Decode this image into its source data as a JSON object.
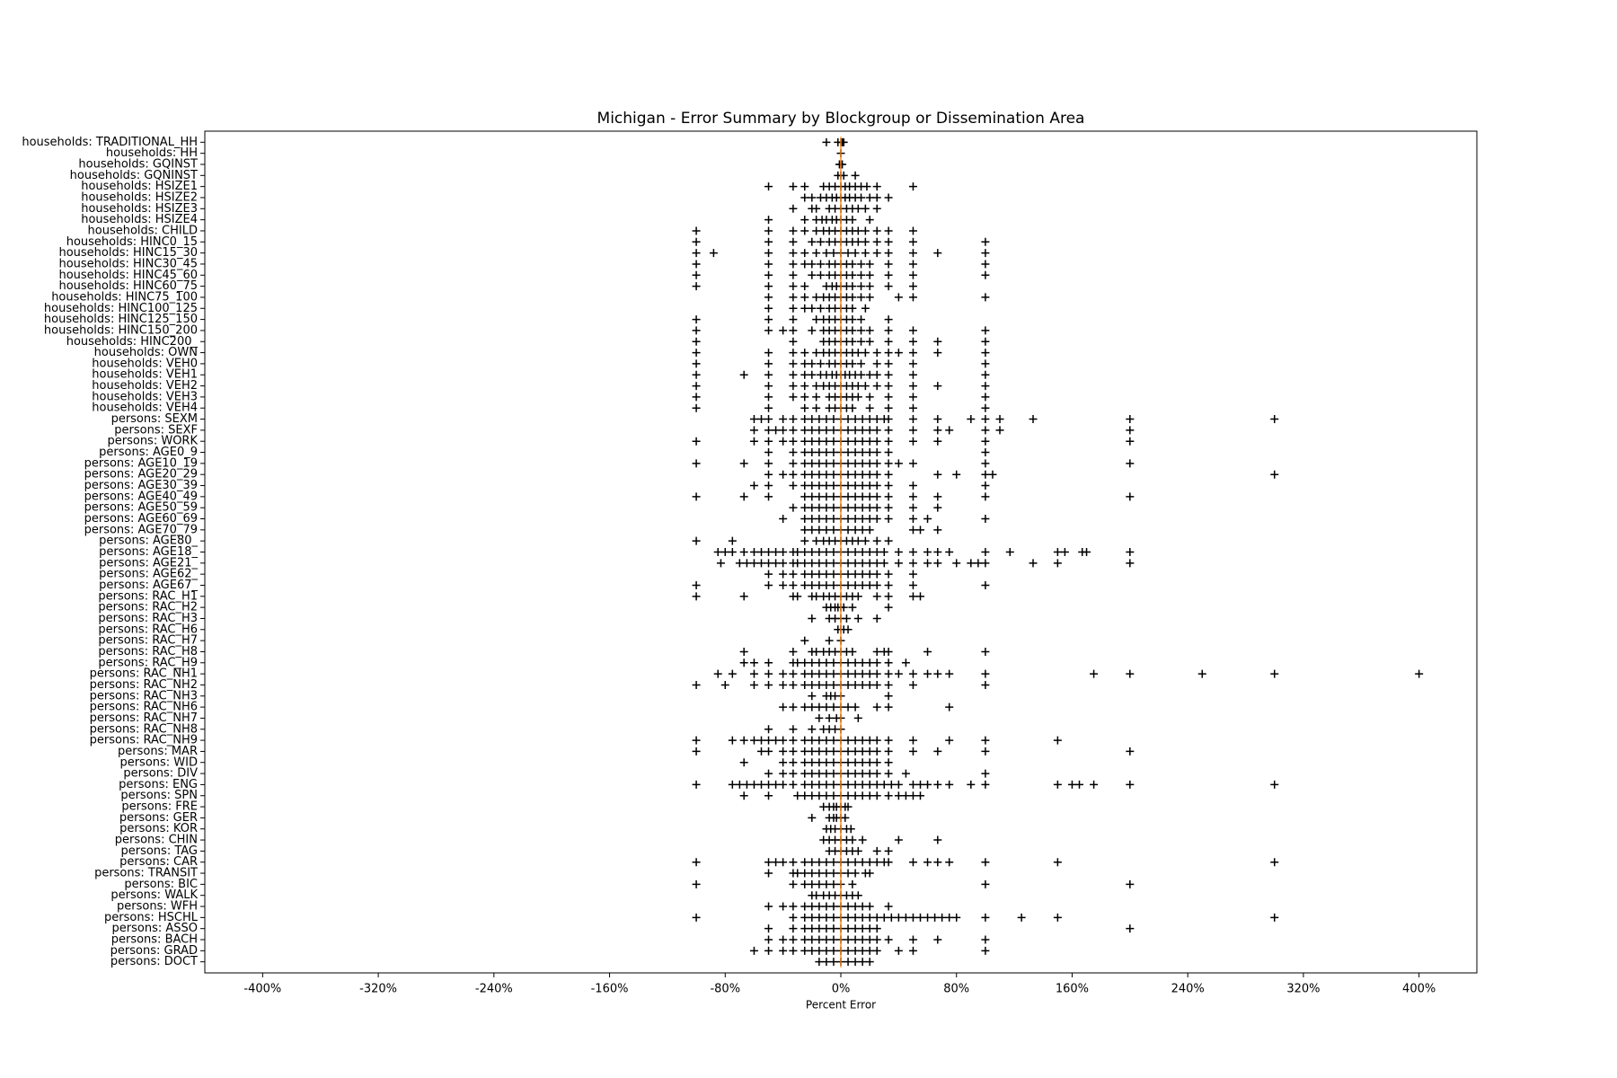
{
  "chart_data": {
    "type": "scatter",
    "title": "Michigan - Error Summary by Blockgroup or Dissemination Area",
    "x_label": "Percent Error",
    "color": "#000000",
    "marker": "+",
    "reference_line": {
      "value": 0,
      "color": "#ff7f0e"
    },
    "xlim": [
      -440,
      440
    ],
    "xticks": [
      {
        "value": -400,
        "label": "-400%"
      },
      {
        "value": -320,
        "label": "-320%"
      },
      {
        "value": -240,
        "label": "-240%"
      },
      {
        "value": -160,
        "label": "-160%"
      },
      {
        "value": -80,
        "label": "-80%"
      },
      {
        "value": 0,
        "label": "0%"
      },
      {
        "value": 80,
        "label": "80%"
      },
      {
        "value": 160,
        "label": "160%"
      },
      {
        "value": 240,
        "label": "240%"
      },
      {
        "value": 320,
        "label": "320%"
      },
      {
        "value": 400,
        "label": "400%"
      }
    ],
    "categories": [
      "households: TRADITIONAL_HH",
      "households: HH",
      "households: GQINST",
      "households: GQNINST",
      "households: HSIZE1",
      "households: HSIZE2",
      "households: HSIZE3",
      "households: HSIZE4",
      "households: CHILD",
      "households: HINC0_15",
      "households: HINC15_30",
      "households: HINC30_45",
      "households: HINC45_60",
      "households: HINC60_75",
      "households: HINC75_100",
      "households: HINC100_125",
      "households: HINC125_150",
      "households: HINC150_200",
      "households: HINC200_",
      "households: OWN",
      "households: VEH0",
      "households: VEH1",
      "households: VEH2",
      "households: VEH3",
      "households: VEH4",
      "persons: SEXM",
      "persons: SEXF",
      "persons: WORK",
      "persons: AGE0_9",
      "persons: AGE10_19",
      "persons: AGE20_29",
      "persons: AGE30_39",
      "persons: AGE40_49",
      "persons: AGE50_59",
      "persons: AGE60_69",
      "persons: AGE70_79",
      "persons: AGE80_",
      "persons: AGE18_",
      "persons: AGE21_",
      "persons: AGE62_",
      "persons: AGE67_",
      "persons: RAC_H1",
      "persons: RAC_H2",
      "persons: RAC_H3",
      "persons: RAC_H6",
      "persons: RAC_H7",
      "persons: RAC_H8",
      "persons: RAC_H9",
      "persons: RAC_NH1",
      "persons: RAC_NH2",
      "persons: RAC_NH3",
      "persons: RAC_NH6",
      "persons: RAC_NH7",
      "persons: RAC_NH8",
      "persons: RAC_NH9",
      "persons: MAR",
      "persons: WID",
      "persons: DIV",
      "persons: ENG",
      "persons: SPN",
      "persons: FRE",
      "persons: GER",
      "persons: KOR",
      "persons: CHIN",
      "persons: TAG",
      "persons: CAR",
      "persons: TRANSIT",
      "persons: BIC",
      "persons: WALK",
      "persons: WFH",
      "persons: HSCHL",
      "persons: ASSO",
      "persons: BACH",
      "persons: GRAD",
      "persons: DOCT"
    ],
    "values": [
      [
        -10,
        -2,
        0,
        1,
        2
      ],
      [
        0
      ],
      [
        -1,
        0,
        1
      ],
      [
        -2,
        0,
        2,
        10
      ],
      [
        -50,
        -33,
        -25,
        -12,
        -8,
        -4,
        0,
        3,
        6,
        10,
        14,
        18,
        25,
        50
      ],
      [
        -25,
        -20,
        -14,
        -10,
        -6,
        -3,
        0,
        3,
        6,
        10,
        14,
        20,
        25,
        33
      ],
      [
        -33,
        -20,
        -17,
        -8,
        -4,
        0,
        4,
        8,
        12,
        17,
        25
      ],
      [
        -50,
        -25,
        -17,
        -13,
        -10,
        -6,
        -3,
        0,
        4,
        8,
        20
      ],
      [
        -100,
        -50,
        -33,
        -25,
        -17,
        -12,
        -8,
        -4,
        0,
        4,
        8,
        12,
        17,
        25,
        33,
        50
      ],
      [
        -100,
        -50,
        -33,
        -20,
        -14,
        -8,
        -4,
        0,
        4,
        8,
        12,
        17,
        25,
        33,
        50,
        100
      ],
      [
        -100,
        -88,
        -50,
        -33,
        -25,
        -17,
        -10,
        -5,
        0,
        5,
        10,
        17,
        25,
        33,
        50,
        67,
        100
      ],
      [
        -100,
        -50,
        -33,
        -25,
        -20,
        -14,
        -8,
        -4,
        0,
        4,
        8,
        14,
        20,
        33,
        50,
        100
      ],
      [
        -100,
        -50,
        -33,
        -20,
        -14,
        -8,
        -4,
        0,
        4,
        8,
        14,
        20,
        33,
        50,
        100
      ],
      [
        -100,
        -50,
        -33,
        -25,
        -10,
        -6,
        -3,
        0,
        4,
        8,
        14,
        20,
        33,
        50
      ],
      [
        -50,
        -33,
        -25,
        -17,
        -12,
        -8,
        -4,
        0,
        4,
        8,
        14,
        20,
        40,
        50,
        100
      ],
      [
        -50,
        -33,
        -25,
        -20,
        -14,
        -8,
        -4,
        0,
        4,
        8,
        17
      ],
      [
        -100,
        -50,
        -33,
        -17,
        -12,
        -8,
        -4,
        0,
        4,
        8,
        14,
        33
      ],
      [
        -100,
        -50,
        -40,
        -33,
        -20,
        -12,
        -8,
        -4,
        0,
        4,
        8,
        14,
        20,
        33,
        50,
        100
      ],
      [
        -100,
        -33,
        -12,
        -8,
        -4,
        0,
        4,
        8,
        14,
        20,
        33,
        50,
        67,
        100
      ],
      [
        -100,
        -50,
        -33,
        -25,
        -17,
        -12,
        -8,
        -4,
        0,
        4,
        8,
        12,
        17,
        25,
        33,
        40,
        50,
        67,
        100
      ],
      [
        -100,
        -50,
        -33,
        -25,
        -20,
        -14,
        -8,
        -4,
        0,
        4,
        8,
        14,
        25,
        33,
        50,
        100
      ],
      [
        -100,
        -67,
        -50,
        -33,
        -25,
        -20,
        -14,
        -10,
        -6,
        -3,
        0,
        3,
        6,
        10,
        14,
        20,
        25,
        33,
        50,
        100
      ],
      [
        -100,
        -50,
        -33,
        -25,
        -17,
        -12,
        -8,
        -4,
        0,
        4,
        8,
        12,
        17,
        25,
        33,
        50,
        67,
        100
      ],
      [
        -100,
        -50,
        -33,
        -25,
        -17,
        -8,
        -4,
        0,
        4,
        8,
        12,
        20,
        33,
        50,
        100
      ],
      [
        -100,
        -50,
        -25,
        -17,
        -8,
        -4,
        0,
        4,
        8,
        20,
        33,
        50,
        100
      ],
      [
        -60,
        -55,
        -50,
        -40,
        -33,
        -25,
        -20,
        -15,
        -10,
        -5,
        0,
        5,
        10,
        15,
        20,
        25,
        30,
        33,
        50,
        67,
        90,
        100,
        110,
        133,
        200,
        300
      ],
      [
        -60,
        -50,
        -45,
        -40,
        -33,
        -25,
        -20,
        -15,
        -10,
        -5,
        0,
        5,
        10,
        15,
        20,
        25,
        33,
        50,
        67,
        75,
        100,
        110,
        200
      ],
      [
        -100,
        -60,
        -50,
        -40,
        -33,
        -25,
        -20,
        -15,
        -10,
        -5,
        0,
        5,
        10,
        15,
        20,
        25,
        33,
        50,
        67,
        100,
        200
      ],
      [
        -50,
        -33,
        -25,
        -20,
        -15,
        -10,
        -5,
        0,
        5,
        10,
        15,
        20,
        25,
        33,
        100
      ],
      [
        -100,
        -67,
        -50,
        -33,
        -25,
        -20,
        -15,
        -10,
        -5,
        0,
        5,
        10,
        15,
        20,
        25,
        33,
        40,
        50,
        100,
        200
      ],
      [
        -50,
        -40,
        -33,
        -25,
        -20,
        -15,
        -10,
        -5,
        0,
        5,
        10,
        15,
        20,
        25,
        33,
        67,
        80,
        100,
        105,
        300
      ],
      [
        -60,
        -50,
        -33,
        -25,
        -20,
        -15,
        -10,
        -5,
        0,
        5,
        10,
        15,
        20,
        25,
        33,
        50,
        100
      ],
      [
        -100,
        -67,
        -50,
        -25,
        -20,
        -15,
        -10,
        -5,
        0,
        5,
        10,
        15,
        20,
        25,
        33,
        50,
        67,
        100,
        200
      ],
      [
        -33,
        -25,
        -20,
        -15,
        -10,
        -5,
        0,
        5,
        10,
        15,
        20,
        25,
        33,
        50,
        67
      ],
      [
        -40,
        -25,
        -20,
        -15,
        -10,
        -5,
        0,
        5,
        10,
        15,
        20,
        25,
        33,
        50,
        60,
        100
      ],
      [
        -25,
        -20,
        -15,
        -10,
        -5,
        0,
        5,
        10,
        15,
        20,
        50,
        55,
        67
      ],
      [
        -100,
        -75,
        -25,
        -17,
        -12,
        -8,
        -4,
        0,
        4,
        8,
        12,
        17,
        25,
        33
      ],
      [
        -85,
        -80,
        -75,
        -67,
        -60,
        -55,
        -50,
        -45,
        -40,
        -33,
        -30,
        -25,
        -20,
        -15,
        -10,
        -5,
        0,
        5,
        10,
        15,
        20,
        25,
        30,
        40,
        50,
        60,
        67,
        75,
        100,
        117,
        150,
        155,
        167,
        170,
        200
      ],
      [
        -83,
        -70,
        -65,
        -60,
        -55,
        -50,
        -45,
        -40,
        -33,
        -30,
        -25,
        -20,
        -15,
        -10,
        -5,
        0,
        5,
        10,
        15,
        20,
        25,
        30,
        40,
        50,
        60,
        67,
        80,
        90,
        95,
        100,
        133,
        150,
        200
      ],
      [
        -50,
        -40,
        -33,
        -25,
        -20,
        -15,
        -10,
        -5,
        0,
        5,
        10,
        15,
        20,
        25,
        33,
        50
      ],
      [
        -100,
        -50,
        -40,
        -33,
        -25,
        -20,
        -15,
        -10,
        -5,
        0,
        5,
        10,
        15,
        20,
        25,
        33,
        50,
        100
      ],
      [
        -100,
        -67,
        -33,
        -30,
        -20,
        -17,
        -12,
        -8,
        -4,
        0,
        4,
        8,
        12,
        25,
        33,
        50,
        55
      ],
      [
        -10,
        -7,
        -4,
        -2,
        0,
        2,
        8,
        33
      ],
      [
        -20,
        -8,
        -4,
        0,
        4,
        12,
        25
      ],
      [
        -2,
        0,
        2,
        5
      ],
      [
        -25,
        -8,
        0
      ],
      [
        -67,
        -33,
        -20,
        -17,
        -12,
        -8,
        -4,
        0,
        4,
        8,
        25,
        30,
        33,
        60,
        100
      ],
      [
        -67,
        -60,
        -50,
        -33,
        -30,
        -25,
        -20,
        -15,
        -10,
        -5,
        0,
        5,
        10,
        15,
        20,
        25,
        33,
        45
      ],
      [
        -85,
        -75,
        -60,
        -50,
        -40,
        -33,
        -25,
        -20,
        -15,
        -10,
        -5,
        0,
        5,
        10,
        15,
        20,
        25,
        33,
        40,
        50,
        60,
        67,
        75,
        100,
        175,
        200,
        250,
        300,
        400
      ],
      [
        -100,
        -80,
        -60,
        -50,
        -40,
        -33,
        -25,
        -20,
        -15,
        -10,
        -5,
        0,
        5,
        10,
        15,
        20,
        25,
        33,
        50,
        100
      ],
      [
        -20,
        -10,
        -7,
        -4,
        0,
        33
      ],
      [
        -40,
        -33,
        -25,
        -20,
        -15,
        -10,
        -5,
        0,
        5,
        10,
        25,
        33,
        75
      ],
      [
        -15,
        -8,
        -3,
        0,
        12
      ],
      [
        -50,
        -33,
        -20,
        -12,
        -8,
        -4,
        0
      ],
      [
        -100,
        -75,
        -67,
        -60,
        -55,
        -50,
        -45,
        -40,
        -33,
        -25,
        -20,
        -15,
        -10,
        -5,
        0,
        5,
        10,
        15,
        20,
        25,
        33,
        50,
        75,
        100,
        150
      ],
      [
        -100,
        -55,
        -50,
        -40,
        -33,
        -25,
        -20,
        -15,
        -10,
        -5,
        0,
        5,
        10,
        15,
        20,
        25,
        33,
        50,
        67,
        100,
        200
      ],
      [
        -67,
        -40,
        -33,
        -25,
        -20,
        -15,
        -10,
        -5,
        0,
        5,
        10,
        15,
        20,
        25,
        33
      ],
      [
        -50,
        -40,
        -33,
        -25,
        -20,
        -15,
        -10,
        -5,
        0,
        5,
        10,
        15,
        20,
        25,
        33,
        45,
        100
      ],
      [
        -100,
        -75,
        -70,
        -65,
        -60,
        -55,
        -50,
        -45,
        -40,
        -33,
        -25,
        -20,
        -15,
        -10,
        -5,
        0,
        5,
        10,
        15,
        20,
        25,
        30,
        35,
        40,
        50,
        55,
        60,
        67,
        75,
        90,
        100,
        150,
        160,
        165,
        175,
        200,
        300
      ],
      [
        -67,
        -50,
        -30,
        -25,
        -20,
        -15,
        -10,
        -5,
        0,
        5,
        10,
        15,
        20,
        25,
        33,
        40,
        45,
        50,
        55
      ],
      [
        -12,
        -8,
        -5,
        -3,
        0,
        3,
        5
      ],
      [
        -20,
        -8,
        -5,
        -3,
        0,
        3
      ],
      [
        -10,
        -7,
        -4,
        0,
        4,
        7
      ],
      [
        -12,
        -8,
        -4,
        0,
        4,
        8,
        15,
        40,
        67
      ],
      [
        -8,
        -4,
        0,
        4,
        8,
        12,
        25,
        33
      ],
      [
        -100,
        -50,
        -45,
        -40,
        -33,
        -25,
        -20,
        -15,
        -10,
        -5,
        0,
        5,
        10,
        15,
        20,
        25,
        30,
        33,
        50,
        60,
        67,
        75,
        100,
        150,
        300
      ],
      [
        -50,
        -33,
        -30,
        -25,
        -20,
        -15,
        -10,
        -5,
        0,
        5,
        10,
        17,
        20
      ],
      [
        -100,
        -33,
        -25,
        -20,
        -15,
        -10,
        -5,
        0,
        8,
        100,
        200
      ],
      [
        -20,
        -17,
        -12,
        -8,
        -4,
        0,
        4,
        8,
        12
      ],
      [
        -50,
        -40,
        -33,
        -25,
        -20,
        -15,
        -10,
        -5,
        0,
        5,
        10,
        15,
        20,
        33
      ],
      [
        -100,
        -33,
        -25,
        -20,
        -15,
        -10,
        -5,
        0,
        5,
        10,
        15,
        20,
        25,
        30,
        35,
        40,
        45,
        50,
        55,
        60,
        65,
        70,
        75,
        80,
        100,
        125,
        150,
        300
      ],
      [
        -50,
        -33,
        -25,
        -20,
        -15,
        -10,
        -5,
        0,
        5,
        10,
        15,
        20,
        25,
        200
      ],
      [
        -50,
        -40,
        -33,
        -25,
        -20,
        -15,
        -10,
        -5,
        0,
        5,
        10,
        15,
        20,
        25,
        33,
        50,
        67,
        100
      ],
      [
        -60,
        -50,
        -40,
        -33,
        -25,
        -20,
        -15,
        -10,
        -5,
        0,
        5,
        10,
        15,
        20,
        25,
        40,
        50,
        100
      ],
      [
        -15,
        -10,
        -5,
        0,
        5,
        10,
        15,
        20
      ]
    ]
  }
}
